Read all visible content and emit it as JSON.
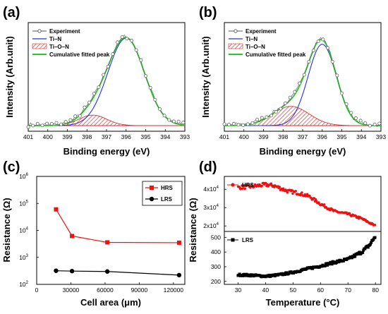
{
  "panels": {
    "a": "(a)",
    "b": "(b)",
    "c": "(c)",
    "d": "(d)"
  },
  "colors": {
    "experiment": "#555555",
    "tin": "#2233dd",
    "tion": "#cc2222",
    "fit": "#22cc22",
    "hrs": "#ee1111",
    "lrs": "#000000"
  },
  "chart_data": [
    {
      "id": "a",
      "type": "line",
      "xlabel": "Binding energy (eV)",
      "ylabel": "Intensity (Arb.unit)",
      "xlim": [
        401,
        393
      ],
      "xticks": [
        "401",
        "400",
        "399",
        "398",
        "397",
        "396",
        "395",
        "394",
        "393"
      ],
      "legend": [
        "Experiment",
        "Ti–N",
        "Ti–O–N",
        "Cumulative fitted peak"
      ],
      "peaks": {
        "tin": {
          "center": 396.0,
          "height": 1.0,
          "fwhm": 2.2
        },
        "tion": {
          "center": 397.7,
          "height": 0.12,
          "fwhm": 1.7
        }
      },
      "baseline": 0.0
    },
    {
      "id": "b",
      "type": "line",
      "xlabel": "Binding energy (eV)",
      "ylabel": "Intensity (Arb.unit)",
      "xlim": [
        401,
        393
      ],
      "xticks": [
        "401",
        "400",
        "399",
        "398",
        "397",
        "396",
        "395",
        "394",
        "393"
      ],
      "legend": [
        "Experiment",
        "Ti–N",
        "Ti–O–N",
        "Cumulative fitted peak"
      ],
      "peaks": {
        "tin": {
          "center": 396.0,
          "height": 0.93,
          "fwhm": 1.7
        },
        "tion": {
          "center": 397.6,
          "height": 0.22,
          "fwhm": 2.2
        }
      },
      "baseline": 0.0
    },
    {
      "id": "c",
      "type": "line",
      "xlabel": "Cell area (μm)",
      "ylabel": "Resistance (Ω)",
      "xlim": [
        0,
        130000
      ],
      "ylog": true,
      "ylim": [
        100,
        1000000
      ],
      "xticks": [
        "0",
        "30000",
        "60000",
        "90000",
        "120000"
      ],
      "yticks": [
        "10^2",
        "10^3",
        "10^4",
        "10^5",
        "10^6"
      ],
      "series": [
        {
          "name": "HRS",
          "x": [
            17000,
            31000,
            62000,
            125000
          ],
          "y": [
            60000,
            6200,
            3600,
            3500
          ]
        },
        {
          "name": "LRS",
          "x": [
            17000,
            31000,
            62000,
            125000
          ],
          "y": [
            320,
            310,
            300,
            220
          ]
        }
      ]
    },
    {
      "id": "d",
      "type": "scatter",
      "xlabel": "Temperature (°C)",
      "ylabel": "Resistance (Ω)",
      "xlim": [
        25,
        82
      ],
      "xticks": [
        "30",
        "40",
        "50",
        "60",
        "70",
        "80"
      ],
      "top": {
        "name": "HRS",
        "ylim": [
          17000,
          47000
        ],
        "yticks": [
          "2x10^4",
          "3x10^4",
          "4x10^4"
        ],
        "yvals": [
          20000,
          30000,
          40000
        ]
      },
      "bottom": {
        "name": "LRS",
        "ylim": [
          180,
          540
        ],
        "yticks": [
          "200",
          "300",
          "400",
          "500"
        ],
        "yvals": [
          200,
          300,
          400,
          500
        ]
      },
      "hrs_trend": [
        [
          30,
          41000
        ],
        [
          35,
          41500
        ],
        [
          40,
          42500
        ],
        [
          43,
          42000
        ],
        [
          48,
          39000
        ],
        [
          52,
          38000
        ],
        [
          56,
          36000
        ],
        [
          60,
          32000
        ],
        [
          65,
          28000
        ],
        [
          70,
          26500
        ],
        [
          75,
          24000
        ],
        [
          80,
          20000
        ]
      ],
      "lrs_trend": [
        [
          30,
          245
        ],
        [
          35,
          242
        ],
        [
          40,
          235
        ],
        [
          45,
          245
        ],
        [
          50,
          262
        ],
        [
          55,
          285
        ],
        [
          60,
          305
        ],
        [
          65,
          330
        ],
        [
          70,
          350
        ],
        [
          75,
          400
        ],
        [
          78,
          450
        ],
        [
          80,
          510
        ]
      ]
    }
  ]
}
